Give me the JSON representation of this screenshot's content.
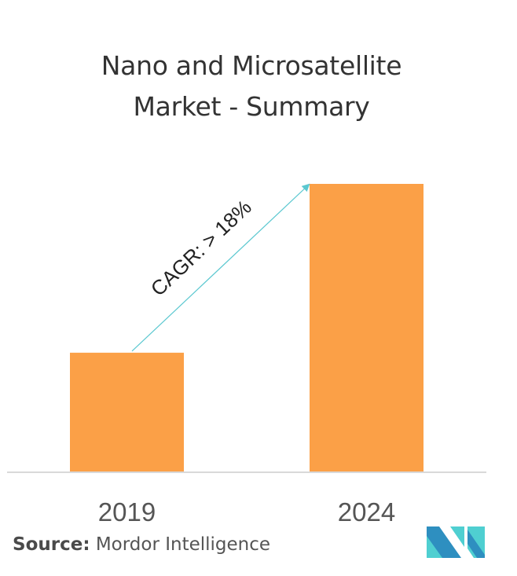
{
  "header": {
    "title_line1": "Nano and Microsatellite",
    "title_line2": "Market - Summary"
  },
  "chart_data": {
    "type": "bar",
    "title": "Nano and Microsatellite Market - Summary",
    "categories": [
      "2019",
      "2024"
    ],
    "values": [
      41.3,
      100
    ],
    "value_note": "relative index (no y-axis shown)",
    "xlabel": "",
    "ylabel": "",
    "ylim": [
      0,
      100
    ],
    "grid": false,
    "annotation": "CAGR: > 18%",
    "bar_color": "#FBA047",
    "arrow_color": "#5BC8D0",
    "axis_color": "#D9D9D9"
  },
  "footer": {
    "source_label": "Source:",
    "source_name": "Mordor Intelligence"
  },
  "logo": {
    "icon": "mordor-intelligence-logo",
    "colors": [
      "#2E8FC0",
      "#4FCFD1"
    ]
  }
}
